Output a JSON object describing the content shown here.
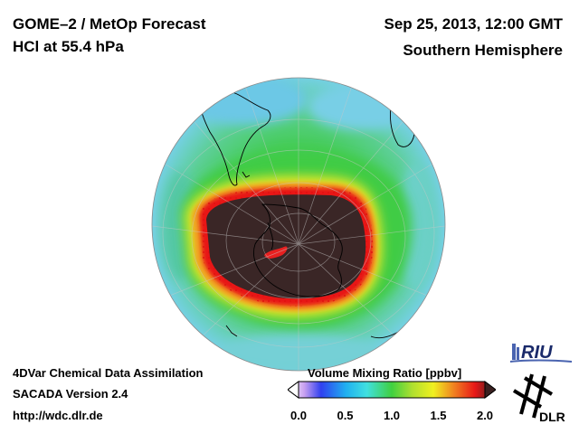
{
  "header": {
    "title_line1": "GOME–2 / MetOp Forecast",
    "title_line2": "HCl at 55.4 hPa",
    "datetime": "Sep 25, 2013, 12:00 GMT",
    "region": "Southern Hemisphere"
  },
  "footer": {
    "line1": "4DVar Chemical Data Assimilation",
    "line2": "SACADA Version 2.4",
    "url": "http://wdc.dlr.de"
  },
  "colorbar": {
    "label": "Volume Mixing Ratio [ppbv]",
    "ticks": [
      "0.0",
      "0.5",
      "1.0",
      "1.5",
      "2.0"
    ],
    "tick_values": [
      0.0,
      0.5,
      1.0,
      1.5,
      2.0
    ],
    "range": [
      0.0,
      2.0
    ]
  },
  "logos": {
    "riu": "RIU",
    "dlr": "DLR"
  },
  "colors": {
    "low_latitude_bg": "#6fd6e8",
    "mid_green": "#3ec84a",
    "collar_yellow": "#f0e020",
    "collar_orange": "#f08020",
    "collar_red": "#e81818",
    "vortex_core": "#3a2424",
    "coastline": "#000000",
    "grid": "#c8c8c8"
  }
}
